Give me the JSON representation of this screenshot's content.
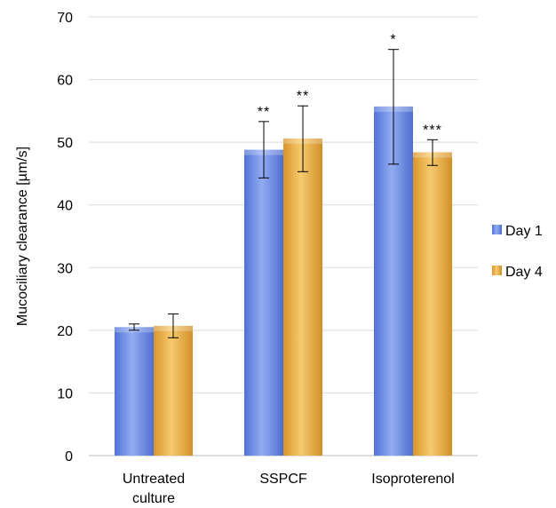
{
  "chart_data": {
    "type": "bar",
    "ylabel": "Mucociliary clearance [µm/s]",
    "ylim": [
      0,
      70
    ],
    "yticks": [
      0,
      10,
      20,
      30,
      40,
      50,
      60,
      70
    ],
    "grid": true,
    "legend_position": "right",
    "categories": [
      [
        "Untreated",
        "culture"
      ],
      [
        "SSPCF"
      ],
      [
        "Isoproterenol"
      ]
    ],
    "series": [
      {
        "name": "Day 1",
        "color": "#6e8fe6",
        "values": [
          20.5,
          48.8,
          55.7
        ],
        "error": [
          [
            20.0,
            21.0
          ],
          [
            44.3,
            53.3
          ],
          [
            46.5,
            64.8
          ]
        ],
        "significance": [
          "",
          "**",
          "*"
        ]
      },
      {
        "name": "Day 4",
        "color": "#eaae3e",
        "values": [
          20.7,
          50.6,
          48.4
        ],
        "error": [
          [
            18.8,
            22.6
          ],
          [
            45.3,
            55.8
          ],
          [
            46.3,
            50.4
          ]
        ],
        "significance": [
          "",
          "**",
          "***"
        ]
      }
    ]
  }
}
